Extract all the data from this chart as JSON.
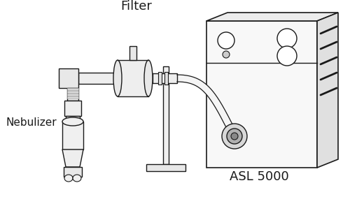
{
  "bg_color": "#ffffff",
  "line_color": "#1a1a1a",
  "light_fill": "#f0f0f0",
  "mid_fill": "#e0e0e0",
  "dark_fill": "#c8c8c8",
  "label_filter": "Filter",
  "label_nebulizer": "Nebulizer",
  "label_asl": "ASL 5000",
  "figsize": [
    5.0,
    2.82
  ],
  "dpi": 100
}
